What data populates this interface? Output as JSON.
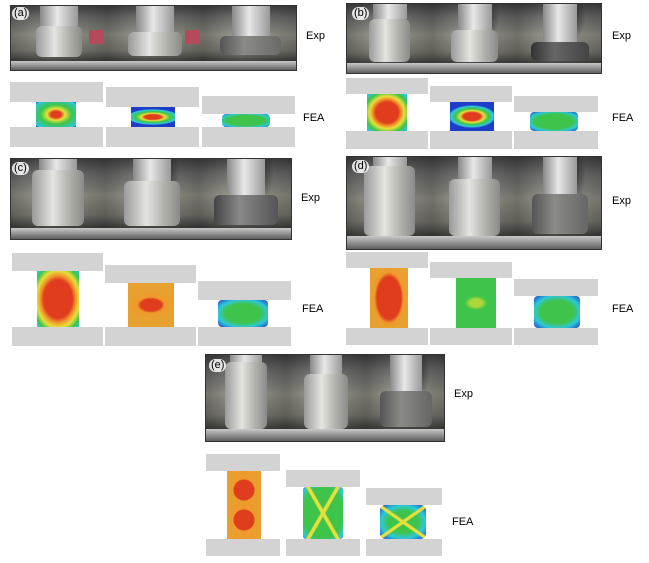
{
  "panels": [
    {
      "tag": "(a)",
      "exp_label": "Exp",
      "fea_label": "FEA"
    },
    {
      "tag": "(b)",
      "exp_label": "Exp",
      "fea_label": "FEA"
    },
    {
      "tag": "(c)",
      "exp_label": "Exp",
      "fea_label": "FEA"
    },
    {
      "tag": "(d)",
      "exp_label": "Exp",
      "fea_label": "FEA"
    },
    {
      "tag": "(e)",
      "exp_label": "Exp",
      "fea_label": "FEA"
    }
  ],
  "colors": {
    "platen_grey": "#d3d3d3",
    "contour_red": "#e03c1e",
    "contour_orange": "#f09a2a",
    "contour_yellow": "#e8e03a",
    "contour_green": "#3ec44a",
    "contour_cyan": "#2ec8d8",
    "contour_blue": "#1e3cc8"
  }
}
